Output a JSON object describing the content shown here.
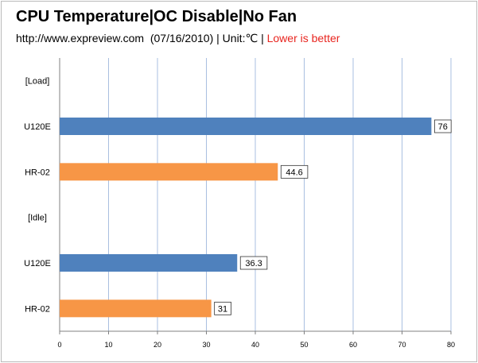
{
  "chart_data": {
    "type": "bar",
    "orientation": "horizontal",
    "title": "CPU Temperature|OC Disable|No Fan",
    "subtitle": {
      "source": "http://www.expreview.com",
      "date": "(07/16/2010)",
      "unit": "| Unit:℃ |",
      "note": "Lower is better"
    },
    "categories": [
      "[Load]",
      "U120E",
      "HR-02",
      "[Idle]",
      "U120E",
      "HR-02"
    ],
    "values": [
      null,
      76,
      44.6,
      null,
      36.3,
      31
    ],
    "value_labels": [
      "",
      "76",
      "44.6",
      "",
      "36.3",
      "31"
    ],
    "bar_colors": [
      "",
      "#4f81bd",
      "#f79646",
      "",
      "#4f81bd",
      "#f79646"
    ],
    "xlim": [
      0,
      80
    ],
    "xticks": [
      0,
      10,
      20,
      30,
      40,
      50,
      60,
      70,
      80
    ],
    "grid": true,
    "xlabel": "",
    "ylabel": ""
  }
}
